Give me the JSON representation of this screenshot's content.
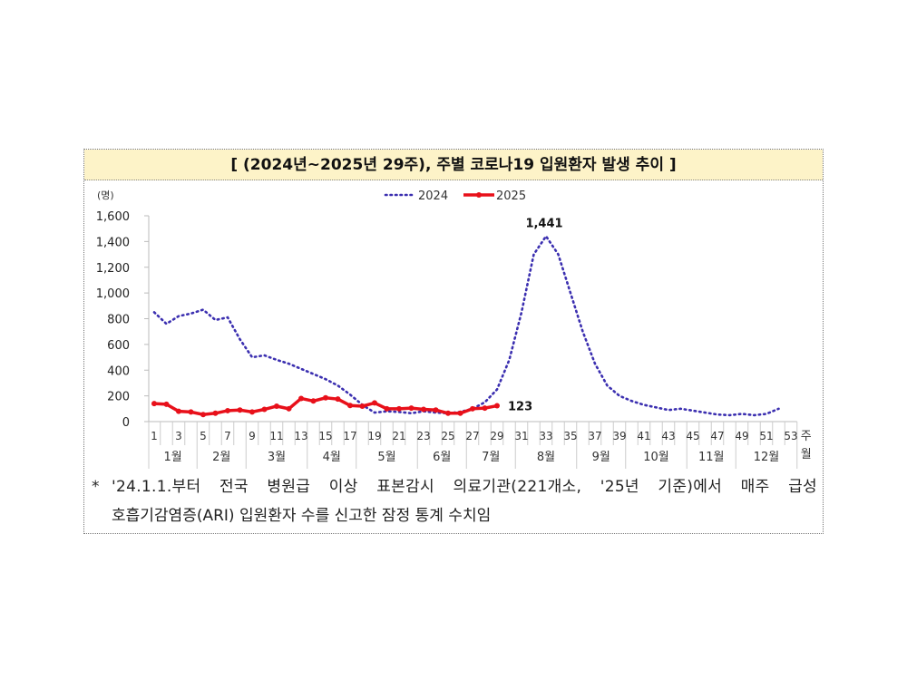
{
  "title": "[ (2024년~2025년 29주), 주별 코로나19 입원환자 발생 추이 ]",
  "footnote": {
    "marker": "*",
    "line1": "'24.1.1.부터 전국 병원급 이상 표본감시 의료기관(221개소, '25년 기준)에서 매주 급성",
    "line2": "호흡기감염증(ARI) 입원환자 수를 신고한 잠정 통계 수치임"
  },
  "chart_data": {
    "type": "line",
    "ylabel": "(명)",
    "xlabel": "주",
    "xlabel2": "월",
    "ylim": [
      0,
      1600
    ],
    "yticks": [
      "0",
      "200",
      "400",
      "600",
      "800",
      "1,000",
      "1,200",
      "1,400",
      "1,600"
    ],
    "x_tick_labels": [
      "1",
      "3",
      "5",
      "7",
      "9",
      "11",
      "13",
      "15",
      "17",
      "19",
      "21",
      "23",
      "25",
      "27",
      "29",
      "31",
      "33",
      "35",
      "37",
      "39",
      "41",
      "43",
      "45",
      "47",
      "49",
      "51",
      "53"
    ],
    "months": [
      {
        "label": "1월",
        "weeks": [
          1,
          4
        ]
      },
      {
        "label": "2월",
        "weeks": [
          5,
          8
        ]
      },
      {
        "label": "3월",
        "weeks": [
          9,
          13
        ]
      },
      {
        "label": "4월",
        "weeks": [
          14,
          17
        ]
      },
      {
        "label": "5월",
        "weeks": [
          18,
          22
        ]
      },
      {
        "label": "6월",
        "weeks": [
          23,
          26
        ]
      },
      {
        "label": "7월",
        "weeks": [
          27,
          30
        ]
      },
      {
        "label": "8월",
        "weeks": [
          31,
          35
        ]
      },
      {
        "label": "9월",
        "weeks": [
          36,
          39
        ]
      },
      {
        "label": "10월",
        "weeks": [
          40,
          44
        ]
      },
      {
        "label": "11월",
        "weeks": [
          45,
          48
        ]
      },
      {
        "label": "12월",
        "weeks": [
          49,
          53
        ]
      }
    ],
    "legend_position": "top",
    "grid": false,
    "series": [
      {
        "name": "2024",
        "color": "#3b2fb0",
        "style": "dotted",
        "values": [
          850,
          760,
          820,
          840,
          870,
          790,
          810,
          640,
          500,
          515,
          480,
          450,
          410,
          370,
          330,
          280,
          210,
          130,
          70,
          80,
          75,
          65,
          80,
          70,
          65,
          75,
          100,
          150,
          250,
          480,
          850,
          1300,
          1441,
          1300,
          1000,
          700,
          450,
          280,
          200,
          160,
          130,
          110,
          90,
          100,
          85,
          70,
          55,
          50,
          60,
          50,
          60,
          100
        ]
      },
      {
        "name": "2025",
        "color": "#e8101a",
        "style": "solid-marker",
        "values": [
          140,
          135,
          80,
          75,
          55,
          65,
          85,
          90,
          75,
          95,
          120,
          100,
          180,
          160,
          185,
          175,
          125,
          120,
          145,
          100,
          100,
          105,
          95,
          90,
          65,
          65,
          100,
          105,
          123
        ]
      }
    ],
    "annotations": [
      {
        "series": "2024",
        "week": 33,
        "text": "1,441"
      },
      {
        "series": "2025",
        "week": 29,
        "text": "123"
      }
    ]
  }
}
